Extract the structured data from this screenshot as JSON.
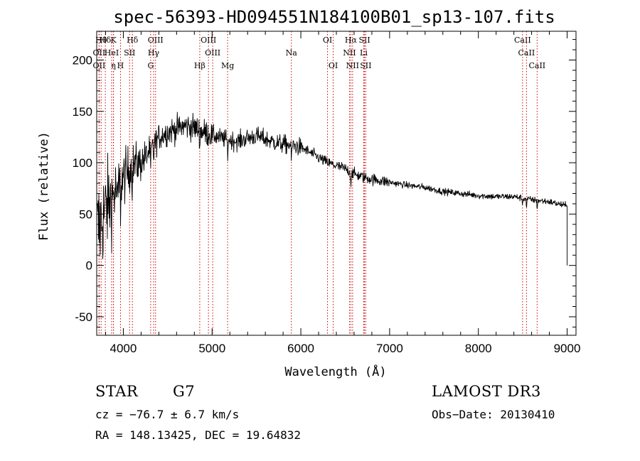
{
  "chart_data": {
    "type": "line",
    "title": "spec-56393-HD094551N184100B01_sp13-107.fits",
    "xlabel": "Wavelength (Å)",
    "ylabel": "Flux (relative)",
    "xlim": [
      3700,
      9100
    ],
    "ylim": [
      -68,
      228
    ],
    "x_ticks": [
      4000,
      5000,
      6000,
      7000,
      8000,
      9000
    ],
    "y_ticks": [
      -50,
      0,
      50,
      100,
      150,
      200
    ],
    "continuum_points": [
      [
        3700,
        30
      ],
      [
        3800,
        55
      ],
      [
        3900,
        70
      ],
      [
        4000,
        85
      ],
      [
        4100,
        98
      ],
      [
        4200,
        100
      ],
      [
        4300,
        112
      ],
      [
        4400,
        125
      ],
      [
        4500,
        130
      ],
      [
        4600,
        133
      ],
      [
        4700,
        136
      ],
      [
        4800,
        134
      ],
      [
        4900,
        130
      ],
      [
        5000,
        127
      ],
      [
        5100,
        124
      ],
      [
        5200,
        122
      ],
      [
        5300,
        121
      ],
      [
        5400,
        124
      ],
      [
        5500,
        126
      ],
      [
        5600,
        123
      ],
      [
        5700,
        120
      ],
      [
        5800,
        118
      ],
      [
        5900,
        117
      ],
      [
        6000,
        115
      ],
      [
        6100,
        110
      ],
      [
        6200,
        105
      ],
      [
        6300,
        100
      ],
      [
        6400,
        97
      ],
      [
        6500,
        94
      ],
      [
        6600,
        89
      ],
      [
        6700,
        86
      ],
      [
        6800,
        84
      ],
      [
        7000,
        81
      ],
      [
        7200,
        78
      ],
      [
        7400,
        76
      ],
      [
        7600,
        72
      ],
      [
        7800,
        70
      ],
      [
        8000,
        68
      ],
      [
        8200,
        67
      ],
      [
        8400,
        67
      ],
      [
        8600,
        64
      ],
      [
        8800,
        62
      ],
      [
        8990,
        58
      ]
    ],
    "absorption_features": [
      {
        "x": 3934,
        "depth": 25
      },
      {
        "x": 3968,
        "depth": 22
      },
      {
        "x": 4102,
        "depth": 18
      },
      {
        "x": 4308,
        "depth": 20
      },
      {
        "x": 4341,
        "depth": 12
      },
      {
        "x": 4861,
        "depth": 10
      },
      {
        "x": 5175,
        "depth": 14
      },
      {
        "x": 5893,
        "depth": 16
      },
      {
        "x": 6563,
        "depth": 12
      },
      {
        "x": 8498,
        "depth": 6
      },
      {
        "x": 8542,
        "depth": 8
      },
      {
        "x": 8662,
        "depth": 7
      }
    ],
    "end_drop": {
      "x": 9000,
      "y": 0
    },
    "line_markers": [
      {
        "x": 3750,
        "label": "Hθ",
        "row": 0
      },
      {
        "x": 3797,
        "label": "Hδ",
        "row": 0
      },
      {
        "x": 3889,
        "label": "K",
        "row": 0
      },
      {
        "x": 4102,
        "label": "Hδ",
        "row": 0
      },
      {
        "x": 4363,
        "label": "OIII",
        "row": 0
      },
      {
        "x": 4959,
        "label": "OIII",
        "row": 0
      },
      {
        "x": 6300,
        "label": "OI",
        "row": 0
      },
      {
        "x": 6563,
        "label": "Hα",
        "row": 0
      },
      {
        "x": 6717,
        "label": "SII",
        "row": 0
      },
      {
        "x": 8498,
        "label": "CaII",
        "row": 0
      },
      {
        "x": 3727,
        "label": "OII",
        "row": 1
      },
      {
        "x": 3868,
        "label": "HeI",
        "row": 1
      },
      {
        "x": 4070,
        "label": "SII",
        "row": 1
      },
      {
        "x": 4341,
        "label": "Hγ",
        "row": 1
      },
      {
        "x": 5007,
        "label": "OIII",
        "row": 1
      },
      {
        "x": 5893,
        "label": "Na",
        "row": 1
      },
      {
        "x": 6548,
        "label": "NII",
        "row": 1
      },
      {
        "x": 6708,
        "label": "Li",
        "row": 1
      },
      {
        "x": 8542,
        "label": "CaII",
        "row": 1
      },
      {
        "x": 3727,
        "label": "OII",
        "row": 2
      },
      {
        "x": 3889,
        "label": "η",
        "row": 2
      },
      {
        "x": 3968,
        "label": "H",
        "row": 2
      },
      {
        "x": 4308,
        "label": "G",
        "row": 2
      },
      {
        "x": 4861,
        "label": "Hβ",
        "row": 2
      },
      {
        "x": 5175,
        "label": "Mg",
        "row": 2
      },
      {
        "x": 6364,
        "label": "OI",
        "row": 2
      },
      {
        "x": 6583,
        "label": "NII",
        "row": 2
      },
      {
        "x": 6731,
        "label": "SII",
        "row": 2
      },
      {
        "x": 8662,
        "label": "CaII",
        "row": 2
      }
    ]
  },
  "info": {
    "object_class": "STAR",
    "subclass": "G7",
    "survey": "LAMOST DR3",
    "redshift": "cz = −76.7 ± 6.7 km/s",
    "obs_date": "Obs−Date: 20130410",
    "coords": "RA = 148.13425, DEC =  19.64832"
  },
  "colors": {
    "spectrum": "#000000",
    "marker_line": "#cc0000",
    "axes": "#000000"
  }
}
